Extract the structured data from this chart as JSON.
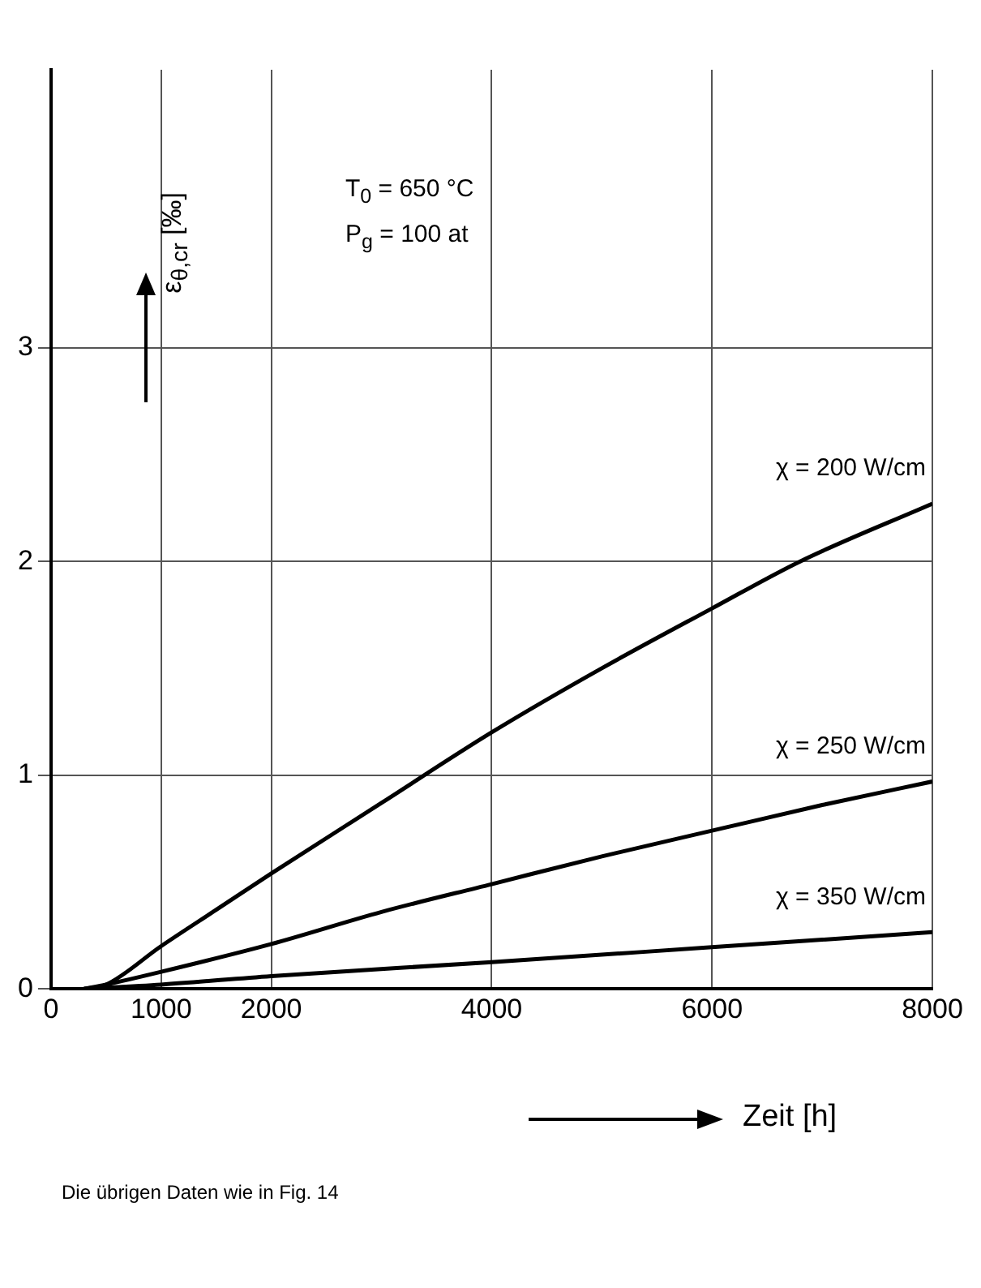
{
  "chart_data": {
    "type": "line",
    "xlabel": "Zeit [h]",
    "ylabel": "ε$_{θ,cr}$ [‰]",
    "xlim": [
      0,
      8000
    ],
    "xticks": [
      0,
      1000,
      2000,
      4000,
      6000,
      8000
    ],
    "ylim": [
      0,
      4.3
    ],
    "yticks": [
      0,
      1,
      2,
      3
    ],
    "grid": true,
    "legend": false,
    "marker": "none",
    "line_style": "solid",
    "series": [
      {
        "name": "χ = 200 W/cm",
        "color": "#000000",
        "x": [
          300,
          500,
          1000,
          1500,
          2000,
          3000,
          4000,
          5000,
          6000,
          6800,
          8000
        ],
        "values": [
          0,
          0.02,
          0.2,
          0.37,
          0.54,
          0.87,
          1.2,
          1.5,
          1.78,
          2.0,
          2.27
        ]
      },
      {
        "name": "χ = 250 W/cm",
        "color": "#000000",
        "x": [
          300,
          500,
          1000,
          2000,
          3000,
          4000,
          5000,
          6000,
          7000,
          8000
        ],
        "values": [
          0,
          0.02,
          0.08,
          0.21,
          0.36,
          0.49,
          0.62,
          0.74,
          0.86,
          0.97
        ]
      },
      {
        "name": "χ = 350 W/cm",
        "color": "#000000",
        "x": [
          300,
          1000,
          2000,
          4000,
          6000,
          8000
        ],
        "values": [
          0,
          0.02,
          0.06,
          0.125,
          0.195,
          0.265
        ]
      }
    ],
    "annotations": [
      "T$_{0}$ = 650 °C",
      "P$_{g}$ = 100 at",
      "Die übrigen Daten wie in Fig. 14"
    ]
  }
}
